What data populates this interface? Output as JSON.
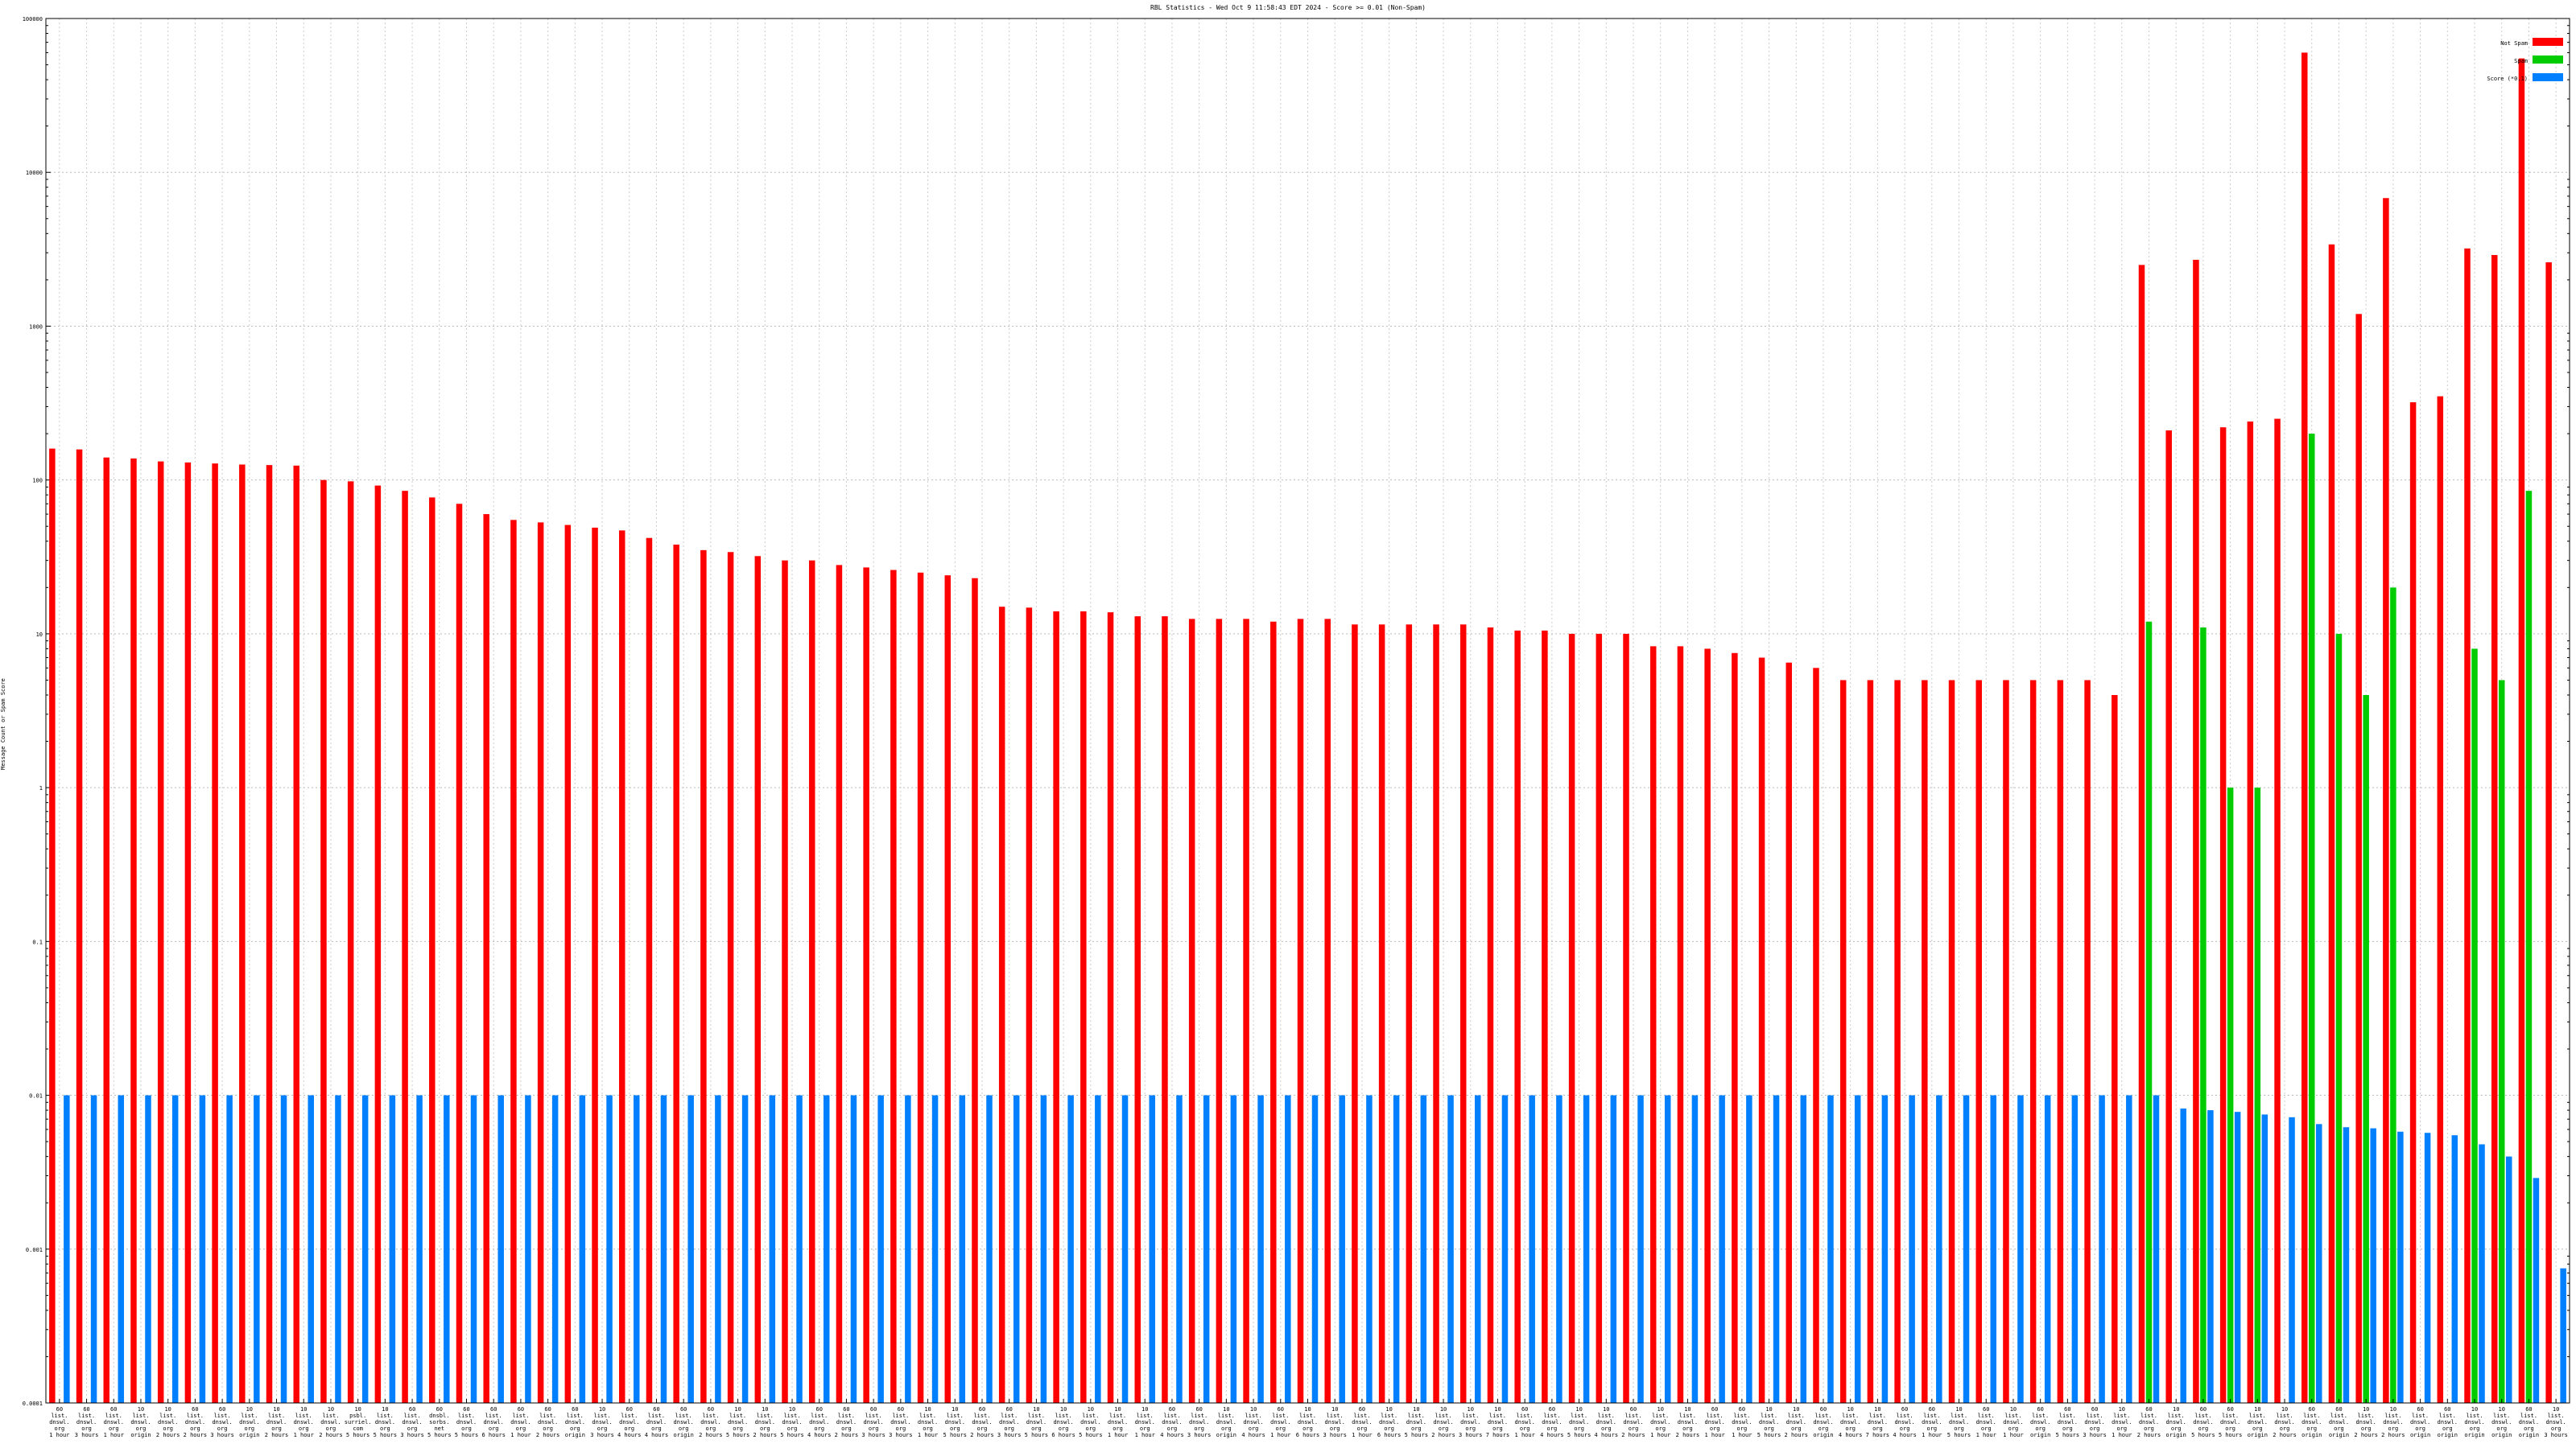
{
  "chart_data": {
    "type": "bar",
    "title": "RBL Statistics - Wed Oct  9 11:58:43 EDT 2024 - Score >= 0.01 (Non-Spam)",
    "ylabel": "Message Count or Spam Score",
    "xlabel": "",
    "yscale": "log",
    "ylim": [
      0.0001,
      100000
    ],
    "yticks": [
      "0.0001",
      "0.001",
      "0.01",
      "0.1",
      "1",
      "10",
      "100",
      "1000",
      "10000",
      "100000"
    ],
    "grid": true,
    "legend_position": "top-right",
    "colors": {
      "not_spam": "#ff0000",
      "spam": "#00cc00",
      "score": "#0080ff"
    },
    "series": [
      {
        "name": "Not Spam",
        "values": [
          160,
          158,
          140,
          138,
          132,
          130,
          128,
          126,
          125,
          124,
          100,
          98,
          92,
          85,
          77,
          70,
          60,
          55,
          53,
          51,
          49,
          47,
          42,
          38,
          35,
          34,
          32,
          30,
          30,
          28,
          27,
          26,
          25,
          24,
          23,
          15,
          14.8,
          14,
          14,
          13.8,
          13,
          13,
          12.5,
          12.5,
          12.5,
          12,
          12.5,
          12.5,
          11.5,
          11.5,
          11.5,
          11.5,
          11.5,
          11,
          10.5,
          10.5,
          10,
          10,
          10,
          8.3,
          8.3,
          8,
          7.5,
          7,
          6.5,
          6,
          5,
          5,
          5,
          5,
          5,
          5,
          5,
          5,
          5,
          5,
          4,
          2500,
          210,
          2700,
          220,
          240,
          250,
          60000,
          3400,
          1200,
          6800,
          320,
          350,
          3200,
          2900,
          55000,
          2600
        ]
      },
      {
        "name": "Spam",
        "values": [
          null,
          null,
          null,
          null,
          null,
          null,
          null,
          null,
          null,
          null,
          null,
          null,
          null,
          null,
          null,
          null,
          null,
          null,
          null,
          null,
          null,
          null,
          null,
          null,
          null,
          null,
          null,
          null,
          null,
          null,
          null,
          null,
          null,
          null,
          null,
          null,
          null,
          null,
          null,
          null,
          null,
          null,
          null,
          null,
          null,
          null,
          null,
          null,
          null,
          null,
          null,
          null,
          null,
          null,
          null,
          null,
          null,
          null,
          null,
          null,
          null,
          null,
          null,
          null,
          null,
          null,
          null,
          null,
          null,
          null,
          null,
          null,
          null,
          null,
          null,
          null,
          null,
          12,
          null,
          11,
          1,
          1,
          null,
          200,
          10,
          4,
          20,
          null,
          null,
          8,
          5,
          85,
          null
        ]
      },
      {
        "name": "Score (*0.1)",
        "values": [
          0.01,
          0.01,
          0.01,
          0.01,
          0.01,
          0.01,
          0.01,
          0.01,
          0.01,
          0.01,
          0.01,
          0.01,
          0.01,
          0.01,
          0.01,
          0.01,
          0.01,
          0.01,
          0.01,
          0.01,
          0.01,
          0.01,
          0.01,
          0.01,
          0.01,
          0.01,
          0.01,
          0.01,
          0.01,
          0.01,
          0.01,
          0.01,
          0.01,
          0.01,
          0.01,
          0.01,
          0.01,
          0.01,
          0.01,
          0.01,
          0.01,
          0.01,
          0.01,
          0.01,
          0.01,
          0.01,
          0.01,
          0.01,
          0.01,
          0.01,
          0.01,
          0.01,
          0.01,
          0.01,
          0.01,
          0.01,
          0.01,
          0.01,
          0.01,
          0.01,
          0.01,
          0.01,
          0.01,
          0.01,
          0.01,
          0.01,
          0.01,
          0.01,
          0.01,
          0.01,
          0.01,
          0.01,
          0.01,
          0.01,
          0.01,
          0.01,
          0.01,
          0.01,
          0.0082,
          0.008,
          0.0078,
          0.0075,
          0.0072,
          0.0065,
          0.0062,
          0.0061,
          0.0058,
          0.0057,
          0.0055,
          0.0048,
          0.004,
          0.0029,
          0.00075
        ]
      }
    ],
    "categories": [
      "60 list.dnswl.org 1 hour",
      "60 list.dnswl.org 3 hours",
      "60 list.dnswl.org 1 hour",
      "10 list.dnswl.org origin",
      "10 list.dnswl.org 2 hours",
      "60 list.dnswl.org 2 hours",
      "60 list.dnswl.org 3 hours",
      "10 list.dnswl.org origin",
      "10 list.dnswl.org 2 hours",
      "10 list.dnswl.org 1 hour",
      "10 list.dnswl.org 2 hours",
      "10 psbl.surriel.com 5 hours",
      "10 list.dnswl.org 5 hours",
      "60 list.dnswl.org 3 hours",
      "60 dnsbl.sorbs.net 5 hours",
      "60 list.dnswl.org 5 hours",
      "60 list.dnswl.org 6 hours",
      "60 list.dnswl.org 1 hour",
      "60 list.dnswl.org 2 hours",
      "60 list.dnswl.org origin",
      "10 list.dnswl.org 3 hours",
      "60 list.dnswl.org 4 hours",
      "60 list.dnswl.org 4 hours",
      "60 list.dnswl.org origin",
      "60 list.dnswl.org 2 hours",
      "10 list.dnswl.org 5 hours",
      "10 list.dnswl.org 2 hours",
      "10 list.dnswl.org 5 hours",
      "60 list.dnswl.org 4 hours",
      "60 list.dnswl.org 2 hours",
      "60 list.dnswl.org 3 hours",
      "60 list.dnswl.org 3 hours",
      "10 list.dnswl.org 1 hour",
      "10 list.dnswl.org 5 hours",
      "60 list.dnswl.org 2 hours",
      "60 list.dnswl.org 3 hours",
      "10 list.dnswl.org 5 hours",
      "10 list.dnswl.org 6 hours",
      "10 list.dnswl.org 5 hours",
      "10 list.dnswl.org 1 hour",
      "10 list.dnswl.org 1 hour",
      "60 list.dnswl.org 4 hours",
      "60 list.dnswl.org 3 hours",
      "10 list.dnswl.org origin",
      "10 list.dnswl.org 4 hours",
      "60 list.dnswl.org 1 hour",
      "10 list.dnswl.org 6 hours",
      "10 list.dnswl.org 3 hours",
      "60 list.dnswl.org 1 hour",
      "10 list.dnswl.org 6 hours",
      "10 list.dnswl.org 5 hours",
      "10 list.dnswl.org 2 hours",
      "10 list.dnswl.org 3 hours",
      "10 list.dnswl.org 7 hours",
      "60 list.dnswl.org 1 hour",
      "60 list.dnswl.org 4 hours",
      "10 list.dnswl.org 5 hours",
      "10 list.dnswl.org 4 hours",
      "60 list.dnswl.org 2 hours",
      "10 list.dnswl.org 1 hour",
      "10 list.dnswl.org 2 hours",
      "60 list.dnswl.org 1 hour",
      "60 list.dnswl.org 1 hour",
      "10 list.dnswl.org 5 hours",
      "10 list.dnswl.org 2 hours",
      "60 list.dnswl.org origin",
      "10 list.dnswl.org 4 hours",
      "10 list.dnswl.org 7 hours",
      "60 list.dnswl.org 4 hours",
      "60 list.dnswl.org 1 hour",
      "10 list.dnswl.org 5 hours",
      "60 list.dnswl.org 1 hour",
      "10 list.dnswl.org 1 hour",
      "60 list.dnswl.org origin",
      "60 list.dnswl.org 5 hours",
      "60 list.dnswl.org 3 hours",
      "10 list.dnswl.org 1 hour",
      "60 list.dnswl.org 2 hours",
      "10 list.dnswl.org origin",
      "60 list.dnswl.org 5 hours",
      "60 list.dnswl.org 5 hours",
      "10 list.dnswl.org origin",
      "10 list.dnswl.org 2 hours",
      "60 list.dnswl.org origin",
      "60 list.dnswl.org origin",
      "10 list.dnswl.org 2 hours",
      "10 list.dnswl.org 2 hours",
      "60 list.dnswl.org origin",
      "60 list.dnswl.org origin",
      "10 list.dnswl.org origin",
      "10 list.dnswl.org origin",
      "60 list.dnswl.org origin",
      "10 list.dnswl.org 3 hours"
    ],
    "category_lines": [
      [
        "60",
        "list.",
        "dnswl.",
        "org",
        "1 hour"
      ],
      [
        "60",
        "list.",
        "dnswl.",
        "org",
        "3 hours"
      ],
      [
        "60",
        "list.",
        "dnswl.",
        "org",
        "1 hour"
      ],
      [
        "10",
        "list.",
        "dnswl.",
        "org",
        "origin"
      ],
      [
        "10",
        "list.",
        "dnswl.",
        "org",
        "2 hours"
      ],
      [
        "60",
        "list.",
        "dnswl.",
        "org",
        "2 hours"
      ],
      [
        "60",
        "list.",
        "dnswl.",
        "org",
        "3 hours"
      ],
      [
        "10",
        "list.",
        "dnswl.",
        "org",
        "origin"
      ],
      [
        "10",
        "list.",
        "dnswl.",
        "org",
        "2 hours"
      ],
      [
        "10",
        "list.",
        "dnswl.",
        "org",
        "1 hour"
      ],
      [
        "10",
        "list.",
        "dnswl.",
        "org",
        "2 hours"
      ],
      [
        "10",
        "psbl.",
        "surriel.",
        "com",
        "5 hours"
      ],
      [
        "10",
        "list.",
        "dnswl.",
        "org",
        "5 hours"
      ],
      [
        "60",
        "list.",
        "dnswl.",
        "org",
        "3 hours"
      ],
      [
        "60",
        "dnsbl.",
        "sorbs.",
        "net",
        "5 hours"
      ],
      [
        "60",
        "list.",
        "dnswl.",
        "org",
        "5 hours"
      ],
      [
        "60",
        "list.",
        "dnswl.",
        "org",
        "6 hours"
      ],
      [
        "60",
        "list.",
        "dnswl.",
        "org",
        "1 hour"
      ],
      [
        "60",
        "list.",
        "dnswl.",
        "org",
        "2 hours"
      ],
      [
        "60",
        "list.",
        "dnswl.",
        "org",
        "origin"
      ],
      [
        "10",
        "list.",
        "dnswl.",
        "org",
        "3 hours"
      ],
      [
        "60",
        "list.",
        "dnswl.",
        "org",
        "4 hours"
      ],
      [
        "60",
        "list.",
        "dnswl.",
        "org",
        "4 hours"
      ],
      [
        "60",
        "list.",
        "dnswl.",
        "org",
        "origin"
      ],
      [
        "60",
        "list.",
        "dnswl.",
        "org",
        "2 hours"
      ],
      [
        "10",
        "list.",
        "dnswl.",
        "org",
        "5 hours"
      ],
      [
        "10",
        "list.",
        "dnswl.",
        "org",
        "2 hours"
      ],
      [
        "10",
        "list.",
        "dnswl.",
        "org",
        "5 hours"
      ],
      [
        "60",
        "list.",
        "dnswl.",
        "org",
        "4 hours"
      ],
      [
        "60",
        "list.",
        "dnswl.",
        "org",
        "2 hours"
      ],
      [
        "60",
        "list.",
        "dnswl.",
        "org",
        "3 hours"
      ],
      [
        "60",
        "list.",
        "dnswl.",
        "org",
        "3 hours"
      ],
      [
        "10",
        "list.",
        "dnswl.",
        "org",
        "1 hour"
      ],
      [
        "10",
        "list.",
        "dnswl.",
        "org",
        "5 hours"
      ],
      [
        "60",
        "list.",
        "dnswl.",
        "org",
        "2 hours"
      ],
      [
        "60",
        "list.",
        "dnswl.",
        "org",
        "3 hours"
      ],
      [
        "10",
        "list.",
        "dnswl.",
        "org",
        "5 hours"
      ],
      [
        "10",
        "list.",
        "dnswl.",
        "org",
        "6 hours"
      ],
      [
        "10",
        "list.",
        "dnswl.",
        "org",
        "5 hours"
      ],
      [
        "10",
        "list.",
        "dnswl.",
        "org",
        "1 hour"
      ],
      [
        "10",
        "list.",
        "dnswl.",
        "org",
        "1 hour"
      ],
      [
        "60",
        "list.",
        "dnswl.",
        "org",
        "4 hours"
      ],
      [
        "60",
        "list.",
        "dnswl.",
        "org",
        "3 hours"
      ],
      [
        "10",
        "list.",
        "dnswl.",
        "org",
        "origin"
      ],
      [
        "10",
        "list.",
        "dnswl.",
        "org",
        "4 hours"
      ],
      [
        "60",
        "list.",
        "dnswl.",
        "org",
        "1 hour"
      ],
      [
        "10",
        "list.",
        "dnswl.",
        "org",
        "6 hours"
      ],
      [
        "10",
        "list.",
        "dnswl.",
        "org",
        "3 hours"
      ],
      [
        "60",
        "list.",
        "dnswl.",
        "org",
        "1 hour"
      ],
      [
        "10",
        "list.",
        "dnswl.",
        "org",
        "6 hours"
      ],
      [
        "10",
        "list.",
        "dnswl.",
        "org",
        "5 hours"
      ],
      [
        "10",
        "list.",
        "dnswl.",
        "org",
        "2 hours"
      ],
      [
        "10",
        "list.",
        "dnswl.",
        "org",
        "3 hours"
      ],
      [
        "10",
        "list.",
        "dnswl.",
        "org",
        "7 hours"
      ],
      [
        "60",
        "list.",
        "dnswl.",
        "org",
        "1 hour"
      ],
      [
        "60",
        "list.",
        "dnswl.",
        "org",
        "4 hours"
      ],
      [
        "10",
        "list.",
        "dnswl.",
        "org",
        "5 hours"
      ],
      [
        "10",
        "list.",
        "dnswl.",
        "org",
        "4 hours"
      ],
      [
        "60",
        "list.",
        "dnswl.",
        "org",
        "2 hours"
      ],
      [
        "10",
        "list.",
        "dnswl.",
        "org",
        "1 hour"
      ],
      [
        "10",
        "list.",
        "dnswl.",
        "org",
        "2 hours"
      ],
      [
        "60",
        "list.",
        "dnswl.",
        "org",
        "1 hour"
      ],
      [
        "60",
        "list.",
        "dnswl.",
        "org",
        "1 hour"
      ],
      [
        "10",
        "list.",
        "dnswl.",
        "org",
        "5 hours"
      ],
      [
        "10",
        "list.",
        "dnswl.",
        "org",
        "2 hours"
      ],
      [
        "60",
        "list.",
        "dnswl.",
        "org",
        "origin"
      ],
      [
        "10",
        "list.",
        "dnswl.",
        "org",
        "4 hours"
      ],
      [
        "10",
        "list.",
        "dnswl.",
        "org",
        "7 hours"
      ],
      [
        "60",
        "list.",
        "dnswl.",
        "org",
        "4 hours"
      ],
      [
        "60",
        "list.",
        "dnswl.",
        "org",
        "1 hour"
      ],
      [
        "10",
        "list.",
        "dnswl.",
        "org",
        "5 hours"
      ],
      [
        "60",
        "list.",
        "dnswl.",
        "org",
        "1 hour"
      ],
      [
        "10",
        "list.",
        "dnswl.",
        "org",
        "1 hour"
      ],
      [
        "60",
        "list.",
        "dnswl.",
        "org",
        "origin"
      ],
      [
        "60",
        "list.",
        "dnswl.",
        "org",
        "5 hours"
      ],
      [
        "60",
        "list.",
        "dnswl.",
        "org",
        "3 hours"
      ],
      [
        "10",
        "list.",
        "dnswl.",
        "org",
        "1 hour"
      ],
      [
        "60",
        "list.",
        "dnswl.",
        "org",
        "2 hours"
      ],
      [
        "10",
        "list.",
        "dnswl.",
        "org",
        "origin"
      ],
      [
        "60",
        "list.",
        "dnswl.",
        "org",
        "5 hours"
      ],
      [
        "60",
        "list.",
        "dnswl.",
        "org",
        "5 hours"
      ],
      [
        "10",
        "list.",
        "dnswl.",
        "org",
        "origin"
      ],
      [
        "10",
        "list.",
        "dnswl.",
        "org",
        "2 hours"
      ],
      [
        "60",
        "list.",
        "dnswl.",
        "org",
        "origin"
      ],
      [
        "60",
        "list.",
        "dnswl.",
        "org",
        "origin"
      ],
      [
        "10",
        "list.",
        "dnswl.",
        "org",
        "2 hours"
      ],
      [
        "10",
        "list.",
        "dnswl.",
        "org",
        "2 hours"
      ],
      [
        "60",
        "list.",
        "dnswl.",
        "org",
        "origin"
      ],
      [
        "60",
        "list.",
        "dnswl.",
        "org",
        "origin"
      ],
      [
        "10",
        "list.",
        "dnswl.",
        "org",
        "origin"
      ],
      [
        "10",
        "list.",
        "dnswl.",
        "org",
        "origin"
      ],
      [
        "60",
        "list.",
        "dnswl.",
        "org",
        "origin"
      ],
      [
        "10",
        "list.",
        "dnswl.",
        "org",
        "3 hours"
      ]
    ]
  }
}
